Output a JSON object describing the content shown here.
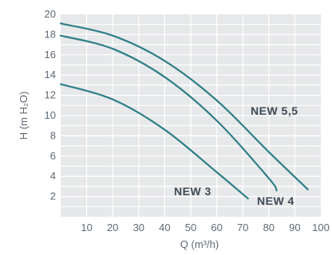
{
  "chart_data": {
    "type": "line",
    "xlabel": "Q (m³/h)",
    "ylabel": "H (m H₂O)",
    "xlim": [
      0,
      100
    ],
    "ylim": [
      0,
      20
    ],
    "x_ticks": [
      "10",
      "20",
      "30",
      "40",
      "50",
      "60",
      "70",
      "80",
      "90",
      "100"
    ],
    "y_ticks": [
      "2",
      "4",
      "6",
      "8",
      "10",
      "12",
      "14",
      "16",
      "18",
      "20"
    ],
    "grid": true,
    "line_color": "#2e7f86",
    "plot_background": "#e6e8ea",
    "series": [
      {
        "name": "NEW 3",
        "x": [
          0,
          20,
          40,
          60,
          72
        ],
        "y": [
          13.1,
          11.6,
          8.6,
          4.4,
          1.8
        ]
      },
      {
        "name": "NEW 4",
        "x": [
          0,
          20,
          40,
          60,
          80,
          83
        ],
        "y": [
          17.9,
          16.6,
          13.8,
          9.5,
          3.8,
          2.6
        ]
      },
      {
        "name": "NEW 5,5",
        "x": [
          0,
          20,
          40,
          60,
          80,
          95
        ],
        "y": [
          19.1,
          17.9,
          15.4,
          11.5,
          6.4,
          2.7
        ]
      }
    ]
  }
}
